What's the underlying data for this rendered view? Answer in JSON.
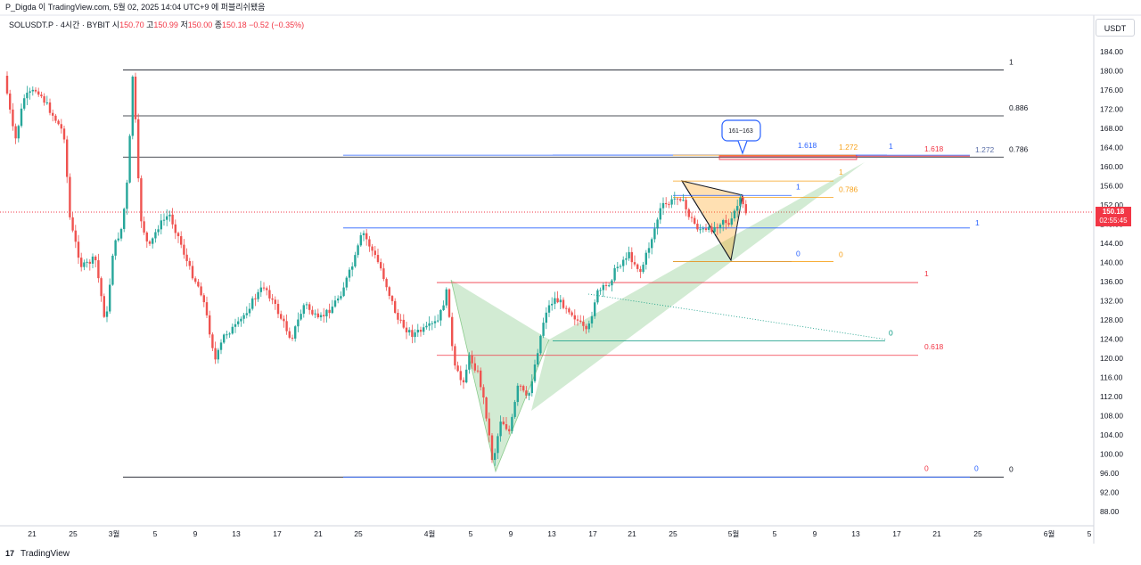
{
  "header": {
    "credit": "P_Digda 이 TradingView.com, 5월 02, 2025 14:04 UTC+9 에 퍼블리쉬됐음"
  },
  "legend": {
    "symbol": "SOLUSDT.P · 4시간 · BYBIT",
    "open_label": "시",
    "open": "150.70",
    "high_label": "고",
    "high": "150.99",
    "low_label": "저",
    "low": "150.00",
    "close_label": "종",
    "close": "150.18",
    "change": "−0.52 (−0.35%)"
  },
  "price_scale": {
    "unit": "USDT",
    "ticks": [
      "184.00",
      "180.00",
      "176.00",
      "172.00",
      "168.00",
      "164.00",
      "160.00",
      "156.00",
      "152.00",
      "148.00",
      "144.00",
      "140.00",
      "136.00",
      "132.00",
      "128.00",
      "124.00",
      "120.00",
      "116.00",
      "112.00",
      "108.00",
      "104.00",
      "100.00",
      "96.00",
      "92.00",
      "88.00"
    ],
    "ticks_values": [
      184,
      180,
      176,
      172,
      168,
      164,
      160,
      156,
      152,
      148,
      144,
      140,
      136,
      132,
      128,
      124,
      120,
      116,
      112,
      108,
      104,
      100,
      96,
      92,
      88
    ],
    "current_price": "150.18",
    "countdown": "02:55:45"
  },
  "time_scale": {
    "labels": [
      "21",
      "25",
      "3월",
      "5",
      "9",
      "13",
      "17",
      "21",
      "25",
      "4월",
      "5",
      "9",
      "13",
      "17",
      "21",
      "25",
      "5월",
      "5",
      "9",
      "13",
      "17",
      "21",
      "25",
      "6월",
      "5"
    ]
  },
  "fib_big": [
    {
      "label": "1",
      "price": 180.2
    },
    {
      "label": "0.886",
      "price": 170.6
    },
    {
      "label": "0.786",
      "price": 162.0
    },
    {
      "label": "0",
      "price": 95.2
    }
  ],
  "fib_blue": [
    {
      "label": "1.618",
      "price": 162.4
    },
    {
      "label": "1",
      "price": 147.2
    },
    {
      "label": "1",
      "price": 154.0
    },
    {
      "label": "0",
      "price": 140.2
    },
    {
      "label": "0",
      "price": 95.2
    },
    {
      "label": "1",
      "price": 162.4
    }
  ],
  "fib_orange": [
    {
      "label": "1.272",
      "price": 162.4
    },
    {
      "label": "1",
      "price": 157.0
    },
    {
      "label": "0.786",
      "price": 153.6
    },
    {
      "label": "0",
      "price": 140.2
    }
  ],
  "fib_red": [
    {
      "label": "1.618",
      "price": 162.2
    },
    {
      "label": "1",
      "price": 135.8
    },
    {
      "label": "0.618",
      "price": 120.6
    },
    {
      "label": "0",
      "price": 95.2
    }
  ],
  "fib_green": [
    {
      "label": "0",
      "price": 123.6
    }
  ],
  "extra_labels": {
    "blue_1272": "1.272"
  },
  "callout": {
    "text": "161~163"
  },
  "footer": {
    "brand": "TradingView",
    "logo": "17"
  },
  "colors": {
    "up": "#26a69a",
    "down": "#ef5350",
    "fib_black": "#131722",
    "fib_blue": "#2962ff",
    "fib_orange": "#f7a21b",
    "fib_red": "#f23645",
    "fib_green": "#089981",
    "pattern_green": "rgba(76,175,80,0.25)",
    "pattern_orange": "rgba(255,152,0,0.3)",
    "current_price": "#f23645"
  }
}
